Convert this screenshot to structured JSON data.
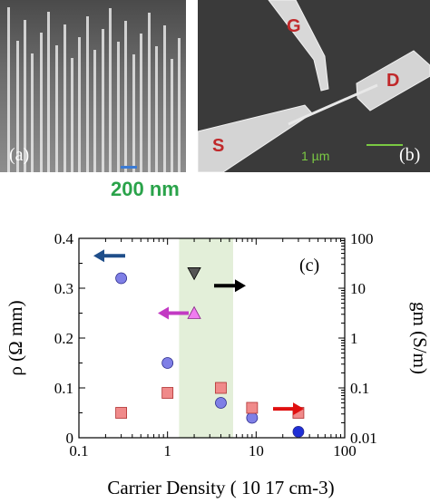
{
  "panel_a": {
    "tag": "(a)",
    "scale_label": "200 nm"
  },
  "panel_b": {
    "tag": "(b)",
    "gate": "G",
    "source": "S",
    "drain": "D",
    "scale_label": "1 µm"
  },
  "chart_data": {
    "type": "scatter",
    "panel_tag": "(c)",
    "xlabel": "Carrier Density (   10 17 cm-3)",
    "ylabel_left": "ρ (Ω mm)",
    "ylabel_right": "gm (S/m)",
    "xscale": "log",
    "xlim": [
      0.1,
      100
    ],
    "ylim_left": [
      0,
      0.4
    ],
    "ylim_right_log": [
      0.01,
      100
    ],
    "x_ticks": [
      "0.1",
      "1",
      "10",
      "100"
    ],
    "y_ticks_left": [
      "0",
      "0.1",
      "0.2",
      "0.3",
      "0.4"
    ],
    "y_ticks_right": [
      "0.01",
      "0.1",
      "1",
      "10",
      "100"
    ],
    "shaded_band_x": [
      1.35,
      5.5
    ],
    "series": [
      {
        "marker": "circle",
        "color": "#7f7fe6",
        "axis": "left",
        "x": [
          0.3,
          1.0,
          4.0,
          9.0
        ],
        "y": [
          0.32,
          0.15,
          0.07,
          0.04
        ]
      },
      {
        "marker": "circle",
        "color": "#1f2fd6",
        "axis": "left",
        "x": [
          30
        ],
        "y": [
          0.012
        ]
      },
      {
        "marker": "square",
        "color": "#f08a8a",
        "axis": "left",
        "x": [
          0.3,
          1.0,
          4.0,
          9.0,
          30
        ],
        "y": [
          0.05,
          0.09,
          0.1,
          0.06,
          0.05
        ]
      },
      {
        "marker": "triangle-up",
        "color": "#f07df0",
        "axis": "left",
        "x": [
          2.0
        ],
        "y": [
          0.25
        ]
      },
      {
        "marker": "triangle-down",
        "color": "#555555",
        "axis": "right",
        "x": [
          2.0
        ],
        "y": [
          20
        ]
      }
    ],
    "arrows": [
      {
        "color": "#1f4e8a",
        "direction": "left"
      },
      {
        "color": "#c23ac3",
        "direction": "left"
      },
      {
        "color": "#000000",
        "direction": "right"
      },
      {
        "color": "#e01010",
        "direction": "right"
      }
    ]
  }
}
